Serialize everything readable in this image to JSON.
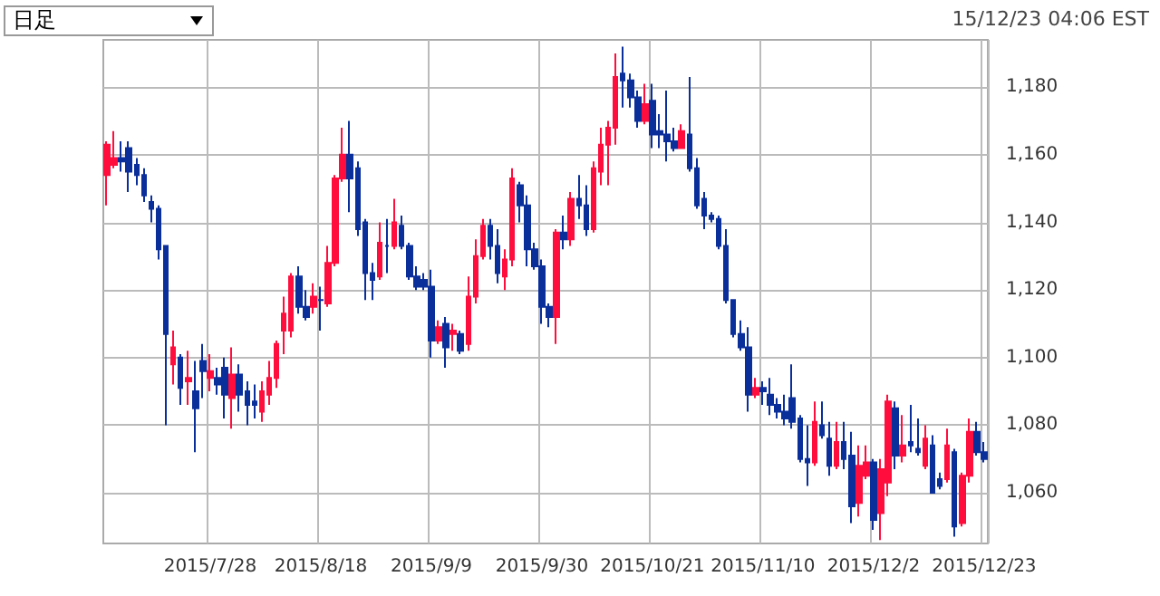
{
  "chart_data": {
    "type": "candlestick",
    "annotations": [
      "日足",
      "15/12/23 04:06 EST"
    ],
    "categories": [
      null,
      null,
      null,
      null,
      null,
      null,
      null,
      null,
      null,
      null,
      null,
      null,
      null,
      null,
      "2015/7/28",
      null,
      null,
      null,
      null,
      null,
      null,
      null,
      null,
      null,
      null,
      null,
      null,
      null,
      null,
      "2015/8/18",
      null,
      null,
      null,
      null,
      null,
      null,
      null,
      null,
      null,
      null,
      null,
      null,
      null,
      null,
      "2015/9/9",
      null,
      null,
      null,
      null,
      null,
      null,
      null,
      null,
      null,
      null,
      null,
      null,
      null,
      null,
      "2015/9/30",
      null,
      null,
      null,
      null,
      null,
      null,
      null,
      null,
      null,
      null,
      null,
      null,
      null,
      null,
      "2015/10/21",
      null,
      null,
      null,
      null,
      null,
      null,
      null,
      null,
      null,
      null,
      null,
      null,
      null,
      null,
      "2015/11/10",
      null,
      null,
      null,
      null,
      null,
      null,
      null,
      null,
      null,
      null,
      null,
      null,
      null,
      null,
      "2015/12/2",
      null,
      null,
      null,
      null,
      null,
      null,
      null,
      null,
      null,
      null,
      null,
      null,
      null,
      null,
      "2015/12/23"
    ],
    "ohlc": [
      [
        1154,
        1164,
        1145,
        1163
      ],
      [
        1157,
        1167,
        1156,
        1159
      ],
      [
        1159,
        1164,
        1155,
        1158
      ],
      [
        1162,
        1164,
        1149,
        1155
      ],
      [
        1157,
        1159,
        1151,
        1154
      ],
      [
        1154,
        1156,
        1146,
        1148
      ],
      [
        1146,
        1148,
        1140,
        1144
      ],
      [
        1144,
        1145,
        1129,
        1132
      ],
      [
        1133,
        1133,
        1080,
        1107
      ],
      [
        1098,
        1108,
        1092,
        1103
      ],
      [
        1100,
        1101,
        1086,
        1091
      ],
      [
        1093,
        1102,
        1086,
        1094
      ],
      [
        1090,
        1099,
        1072,
        1085
      ],
      [
        1099,
        1104,
        1088,
        1096
      ],
      [
        1094,
        1101,
        1090,
        1096
      ],
      [
        1094,
        1097,
        1089,
        1092
      ],
      [
        1097,
        1100,
        1082,
        1089
      ],
      [
        1088,
        1103,
        1079,
        1095
      ],
      [
        1095,
        1098,
        1084,
        1089
      ],
      [
        1090,
        1093,
        1080,
        1086
      ],
      [
        1087,
        1092,
        1082,
        1086
      ],
      [
        1084,
        1093,
        1081,
        1090
      ],
      [
        1089,
        1099,
        1086,
        1094
      ],
      [
        1094,
        1105,
        1091,
        1104
      ],
      [
        1108,
        1118,
        1101,
        1113
      ],
      [
        1108,
        1125,
        1106,
        1124
      ],
      [
        1124,
        1127,
        1113,
        1115
      ],
      [
        1115,
        1120,
        1111,
        1112
      ],
      [
        1115,
        1122,
        1113,
        1118
      ],
      [
        1117,
        1121,
        1108,
        1117
      ],
      [
        1116,
        1133,
        1115,
        1128
      ],
      [
        1128,
        1154,
        1127,
        1153
      ],
      [
        1153,
        1168,
        1152,
        1160
      ],
      [
        1160,
        1170,
        1143,
        1153
      ],
      [
        1156,
        1158,
        1136,
        1138
      ],
      [
        1140,
        1141,
        1117,
        1125
      ],
      [
        1125,
        1128,
        1117,
        1123
      ],
      [
        1124,
        1140,
        1123,
        1134
      ],
      [
        1133,
        1141,
        1125,
        1133
      ],
      [
        1133,
        1147,
        1132,
        1140
      ],
      [
        1139,
        1142,
        1132,
        1133
      ],
      [
        1133,
        1134,
        1123,
        1124
      ],
      [
        1124,
        1127,
        1120,
        1121
      ],
      [
        1123,
        1125,
        1120,
        1121
      ],
      [
        1121,
        1126,
        1100,
        1105
      ],
      [
        1105,
        1111,
        1104,
        1109
      ],
      [
        1110,
        1112,
        1097,
        1103
      ],
      [
        1107,
        1110,
        1102,
        1108
      ],
      [
        1107,
        1108,
        1101,
        1102
      ],
      [
        1104,
        1124,
        1102,
        1118
      ],
      [
        1118,
        1135,
        1116,
        1130
      ],
      [
        1130,
        1141,
        1129,
        1139
      ],
      [
        1139,
        1141,
        1129,
        1133
      ],
      [
        1133,
        1138,
        1122,
        1125
      ],
      [
        1124,
        1132,
        1120,
        1129
      ],
      [
        1129,
        1156,
        1127,
        1153
      ],
      [
        1151,
        1152,
        1140,
        1145
      ],
      [
        1145,
        1148,
        1127,
        1132
      ],
      [
        1132,
        1134,
        1126,
        1127
      ],
      [
        1127,
        1129,
        1110,
        1115
      ],
      [
        1115,
        1116,
        1109,
        1112
      ],
      [
        1112,
        1138,
        1104,
        1137
      ],
      [
        1137,
        1142,
        1132,
        1135
      ],
      [
        1135,
        1149,
        1133,
        1147
      ],
      [
        1147,
        1154,
        1141,
        1145
      ],
      [
        1145,
        1151,
        1136,
        1138
      ],
      [
        1138,
        1158,
        1137,
        1156
      ],
      [
        1155,
        1168,
        1151,
        1163
      ],
      [
        1163,
        1170,
        1151,
        1168
      ],
      [
        1168,
        1190,
        1163,
        1183
      ],
      [
        1184,
        1192,
        1174,
        1182
      ],
      [
        1182,
        1184,
        1174,
        1177
      ],
      [
        1177,
        1179,
        1168,
        1170
      ],
      [
        1170,
        1181,
        1169,
        1175
      ],
      [
        1176,
        1181,
        1162,
        1166
      ],
      [
        1167,
        1172,
        1162,
        1166
      ],
      [
        1166,
        1179,
        1158,
        1164
      ],
      [
        1164,
        1168,
        1161,
        1162
      ],
      [
        1162,
        1169,
        1162,
        1167
      ],
      [
        1166,
        1183,
        1155,
        1156
      ],
      [
        1156,
        1159,
        1144,
        1145
      ],
      [
        1147,
        1149,
        1138,
        1142
      ],
      [
        1142,
        1143,
        1140,
        1141
      ],
      [
        1141,
        1142,
        1132,
        1133
      ],
      [
        1133,
        1138,
        1116,
        1117
      ],
      [
        1117,
        1117,
        1106,
        1107
      ],
      [
        1107,
        1111,
        1102,
        1103
      ],
      [
        1103,
        1109,
        1084,
        1089
      ],
      [
        1089,
        1094,
        1088,
        1091
      ],
      [
        1091,
        1093,
        1086,
        1090
      ],
      [
        1089,
        1094,
        1083,
        1086
      ],
      [
        1086,
        1088,
        1082,
        1084
      ],
      [
        1084,
        1089,
        1080,
        1082
      ],
      [
        1088,
        1098,
        1079,
        1081
      ],
      [
        1082,
        1083,
        1069,
        1070
      ],
      [
        1070,
        1080,
        1062,
        1069
      ],
      [
        1069,
        1087,
        1068,
        1081
      ],
      [
        1080,
        1087,
        1076,
        1077
      ],
      [
        1076,
        1081,
        1065,
        1068
      ],
      [
        1068,
        1081,
        1067,
        1075
      ],
      [
        1075,
        1081,
        1067,
        1070
      ],
      [
        1071,
        1078,
        1051,
        1056
      ],
      [
        1057,
        1074,
        1053,
        1068
      ],
      [
        1065,
        1074,
        1064,
        1069
      ],
      [
        1069,
        1070,
        1049,
        1052
      ],
      [
        1054,
        1070,
        1046,
        1067
      ],
      [
        1063,
        1089,
        1059,
        1087
      ],
      [
        1085,
        1087,
        1067,
        1071
      ],
      [
        1071,
        1083,
        1069,
        1074
      ],
      [
        1075,
        1086,
        1072,
        1074
      ],
      [
        1073,
        1082,
        1071,
        1072
      ],
      [
        1068,
        1080,
        1067,
        1076
      ],
      [
        1074,
        1077,
        1060,
        1060
      ],
      [
        1064,
        1066,
        1061,
        1062
      ],
      [
        1064,
        1079,
        1063,
        1074
      ],
      [
        1072,
        1073,
        1047,
        1050
      ],
      [
        1051,
        1066,
        1050,
        1065
      ],
      [
        1065,
        1082,
        1063,
        1078
      ],
      [
        1078,
        1081,
        1071,
        1072
      ],
      [
        1072,
        1075,
        1069,
        1070
      ]
    ],
    "colors": [
      "#ff0d3d",
      "#ff0d3d",
      "#0a2f9a",
      "#0a2f9a",
      "#0a2f9a",
      "#0a2f9a",
      "#0a2f9a",
      "#0a2f9a",
      "#0a2f9a",
      "#ff0d3d",
      "#0a2f9a",
      "#ff0d3d",
      "#0a2f9a",
      "#0a2f9a",
      "#ff0d3d",
      "#0a2f9a",
      "#0a2f9a",
      "#ff0d3d",
      "#0a2f9a",
      "#0a2f9a",
      "#0a2f9a",
      "#ff0d3d",
      "#ff0d3d",
      "#ff0d3d",
      "#ff0d3d",
      "#ff0d3d",
      "#0a2f9a",
      "#0a2f9a",
      "#ff0d3d",
      "#0a2f9a",
      "#ff0d3d",
      "#ff0d3d",
      "#ff0d3d",
      "#0a2f9a",
      "#0a2f9a",
      "#0a2f9a",
      "#0a2f9a",
      "#ff0d3d",
      "#0a2f9a",
      "#ff0d3d",
      "#0a2f9a",
      "#0a2f9a",
      "#0a2f9a",
      "#0a2f9a",
      "#0a2f9a",
      "#ff0d3d",
      "#0a2f9a",
      "#ff0d3d",
      "#0a2f9a",
      "#ff0d3d",
      "#ff0d3d",
      "#ff0d3d",
      "#0a2f9a",
      "#0a2f9a",
      "#ff0d3d",
      "#ff0d3d",
      "#0a2f9a",
      "#0a2f9a",
      "#0a2f9a",
      "#0a2f9a",
      "#0a2f9a",
      "#ff0d3d",
      "#0a2f9a",
      "#ff0d3d",
      "#0a2f9a",
      "#0a2f9a",
      "#ff0d3d",
      "#ff0d3d",
      "#ff0d3d",
      "#ff0d3d",
      "#0a2f9a",
      "#0a2f9a",
      "#0a2f9a",
      "#ff0d3d",
      "#0a2f9a",
      "#0a2f9a",
      "#0a2f9a",
      "#0a2f9a",
      "#ff0d3d",
      "#0a2f9a",
      "#0a2f9a",
      "#0a2f9a",
      "#0a2f9a",
      "#0a2f9a",
      "#0a2f9a",
      "#0a2f9a",
      "#0a2f9a",
      "#0a2f9a",
      "#ff0d3d",
      "#0a2f9a",
      "#0a2f9a",
      "#0a2f9a",
      "#0a2f9a",
      "#0a2f9a",
      "#0a2f9a",
      "#0a2f9a",
      "#ff0d3d",
      "#0a2f9a",
      "#0a2f9a",
      "#ff0d3d",
      "#0a2f9a",
      "#0a2f9a",
      "#ff0d3d",
      "#ff0d3d",
      "#0a2f9a",
      "#ff0d3d",
      "#ff0d3d",
      "#0a2f9a",
      "#ff0d3d",
      "#0a2f9a",
      "#0a2f9a",
      "#ff0d3d",
      "#0a2f9a",
      "#0a2f9a",
      "#ff0d3d",
      "#0a2f9a",
      "#ff0d3d",
      "#ff0d3d",
      "#0a2f9a",
      "#0a2f9a"
    ],
    "ylim": [
      1045,
      1194
    ],
    "yticks": [
      {
        "value": 1060,
        "label": "1,060"
      },
      {
        "value": 1080,
        "label": "1,080"
      },
      {
        "value": 1100,
        "label": "1,100"
      },
      {
        "value": 1120,
        "label": "1,120"
      },
      {
        "value": 1140,
        "label": "1,140"
      },
      {
        "value": 1160,
        "label": "1,160"
      },
      {
        "value": 1180,
        "label": "1,180"
      }
    ],
    "grid": true
  }
}
